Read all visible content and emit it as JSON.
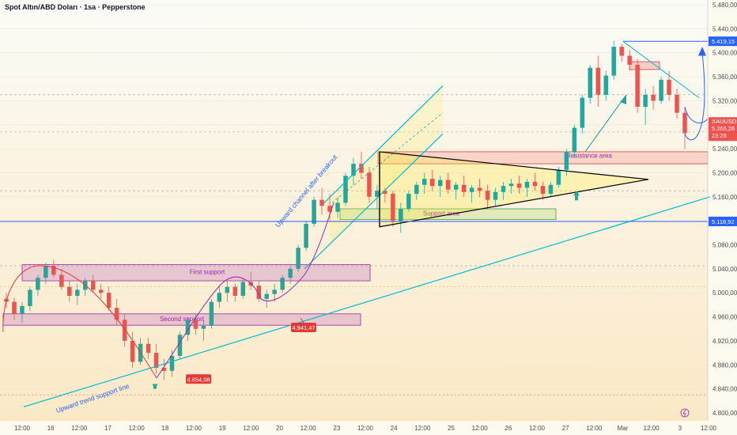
{
  "header": {
    "title": "Spot Altın/ABD Doları · 1sa · Pepperstone"
  },
  "colors": {
    "up": "#26a69a",
    "down": "#ef5350",
    "purple": "#9c27b0",
    "blue": "#2962ff",
    "teal": "#00bcd4",
    "red_zone": "#e53935",
    "green_zone": "#43a047"
  },
  "chart_data": {
    "type": "candlestick",
    "title": "Spot Altın/ABD Doları · 1sa · Pepperstone",
    "symbol": "XAUUSD",
    "ylim": [
      4800,
      5480
    ],
    "y_ticks": [
      4800,
      4840,
      4880,
      4920,
      4960,
      5000,
      5040,
      5080,
      5120,
      5160,
      5200,
      5240,
      5280,
      5320,
      5360,
      5400,
      5440,
      5480
    ],
    "y_tick_labels": [
      "4.800,00",
      "4.840,00",
      "4.880,00",
      "4.920,00",
      "4.960,00",
      "5.000,00",
      "5.040,00",
      "5.080,00",
      "5.120,00",
      "5.160,00",
      "5.200,00",
      "5.240,00",
      "5.280,00",
      "5.320,00",
      "5.360,00",
      "5.400,00",
      "5.440,00",
      "5.480,00"
    ],
    "x_ticks": [
      "12:00",
      "16",
      "12:00",
      "17",
      "12:00",
      "18",
      "12:00",
      "19",
      "12:00",
      "20",
      "12:00",
      "23",
      "12:00",
      "24",
      "12:00",
      "25",
      "12:00",
      "26",
      "12:00",
      "27",
      "12:00",
      "Mar",
      "12:00",
      "3",
      "12:00"
    ],
    "price_tags": [
      {
        "label": "5.419,15",
        "value": 5419.15,
        "color": "#2962ff"
      },
      {
        "label": "XAUUSD",
        "value": 5266.26,
        "color": "#ef5350"
      },
      {
        "label": "5.266,26",
        "value": 5266.26,
        "color": "#ef5350"
      },
      {
        "label": "23:28",
        "value": 5266.26,
        "color": "#ef5350"
      },
      {
        "label": "5.118,92",
        "value": 5118.92,
        "color": "#2962ff"
      }
    ],
    "annotations": {
      "first_support": "First support",
      "second_support": "Second support",
      "support_area": "Support area",
      "resistance_area": "Resistance area",
      "upward_channel": "Upward channel after breakout",
      "upward_trend": "Upward trend support line",
      "low_1": "4.854,08",
      "low_2": "4.941,47"
    },
    "series": [
      {
        "values": [
          [
            4990,
            5000,
            4975,
            4985
          ],
          [
            4985,
            4992,
            4955,
            4965
          ],
          [
            4965,
            4985,
            4950,
            4978
          ],
          [
            4978,
            5010,
            4970,
            5005
          ],
          [
            5005,
            5030,
            4995,
            5025
          ],
          [
            5025,
            5050,
            5015,
            5045
          ],
          [
            5045,
            5055,
            5025,
            5030
          ],
          [
            5030,
            5040,
            5005,
            5010
          ],
          [
            5010,
            5020,
            4985,
            4995
          ],
          [
            4995,
            5015,
            4980,
            5005
          ],
          [
            5005,
            5025,
            4995,
            5020
          ],
          [
            5020,
            5030,
            5000,
            5005
          ],
          [
            5005,
            5015,
            4990,
            5000
          ],
          [
            5000,
            5010,
            4970,
            4975
          ],
          [
            4975,
            4990,
            4945,
            4955
          ],
          [
            4955,
            4965,
            4910,
            4920
          ],
          [
            4920,
            4935,
            4875,
            4885
          ],
          [
            4885,
            4925,
            4880,
            4915
          ],
          [
            4915,
            4925,
            4890,
            4900
          ],
          [
            4900,
            4915,
            4865,
            4875
          ],
          [
            4875,
            4890,
            4855,
            4870
          ],
          [
            4870,
            4905,
            4860,
            4895
          ],
          [
            4895,
            4935,
            4890,
            4930
          ],
          [
            4930,
            4960,
            4920,
            4955
          ],
          [
            4955,
            4965,
            4930,
            4940
          ],
          [
            4940,
            4955,
            4920,
            4945
          ],
          [
            4945,
            4990,
            4940,
            4985
          ],
          [
            4985,
            5010,
            4975,
            5000
          ],
          [
            5000,
            5020,
            4985,
            5010
          ],
          [
            5010,
            5015,
            4985,
            4995
          ],
          [
            4995,
            5025,
            4990,
            5018
          ],
          [
            5018,
            5035,
            5005,
            5012
          ],
          [
            5012,
            5020,
            4985,
            4990
          ],
          [
            4990,
            5005,
            4975,
            4998
          ],
          [
            4998,
            5015,
            4985,
            5005
          ],
          [
            5005,
            5030,
            5000,
            5025
          ],
          [
            5025,
            5045,
            5015,
            5040
          ],
          [
            5040,
            5080,
            5035,
            5075
          ],
          [
            5075,
            5120,
            5070,
            5115
          ],
          [
            5115,
            5160,
            5110,
            5155
          ],
          [
            5155,
            5175,
            5130,
            5145
          ],
          [
            5145,
            5165,
            5120,
            5135
          ],
          [
            5135,
            5160,
            5125,
            5150
          ],
          [
            5150,
            5200,
            5145,
            5195
          ],
          [
            5195,
            5225,
            5180,
            5215
          ],
          [
            5215,
            5235,
            5190,
            5200
          ],
          [
            5200,
            5210,
            5150,
            5160
          ],
          [
            5160,
            5180,
            5140,
            5170
          ],
          [
            5170,
            5175,
            5150,
            5165
          ],
          [
            5165,
            5170,
            5110,
            5120
          ],
          [
            5120,
            5150,
            5100,
            5140
          ],
          [
            5140,
            5170,
            5135,
            5165
          ],
          [
            5165,
            5185,
            5155,
            5180
          ],
          [
            5180,
            5200,
            5165,
            5190
          ],
          [
            5190,
            5205,
            5170,
            5178
          ],
          [
            5178,
            5195,
            5160,
            5188
          ],
          [
            5188,
            5200,
            5165,
            5172
          ],
          [
            5172,
            5185,
            5155,
            5180
          ],
          [
            5180,
            5195,
            5160,
            5168
          ],
          [
            5168,
            5180,
            5150,
            5175
          ],
          [
            5175,
            5190,
            5160,
            5170
          ],
          [
            5170,
            5180,
            5140,
            5155
          ],
          [
            5155,
            5175,
            5145,
            5168
          ],
          [
            5168,
            5185,
            5155,
            5178
          ],
          [
            5178,
            5190,
            5165,
            5182
          ],
          [
            5182,
            5195,
            5165,
            5175
          ],
          [
            5175,
            5190,
            5160,
            5185
          ],
          [
            5185,
            5200,
            5170,
            5178
          ],
          [
            5178,
            5185,
            5155,
            5165
          ],
          [
            5165,
            5185,
            5160,
            5180
          ],
          [
            5180,
            5210,
            5175,
            5205
          ],
          [
            5205,
            5240,
            5195,
            5235
          ],
          [
            5235,
            5280,
            5225,
            5275
          ],
          [
            5275,
            5330,
            5265,
            5325
          ],
          [
            5325,
            5380,
            5315,
            5375
          ],
          [
            5375,
            5395,
            5310,
            5330
          ],
          [
            5330,
            5370,
            5320,
            5362
          ],
          [
            5362,
            5420,
            5355,
            5410
          ],
          [
            5410,
            5415,
            5385,
            5395
          ],
          [
            5395,
            5405,
            5370,
            5380
          ],
          [
            5380,
            5390,
            5300,
            5310
          ],
          [
            5310,
            5340,
            5280,
            5330
          ],
          [
            5330,
            5345,
            5305,
            5320
          ],
          [
            5320,
            5360,
            5315,
            5355
          ],
          [
            5355,
            5370,
            5320,
            5330
          ],
          [
            5330,
            5340,
            5290,
            5300
          ],
          [
            5300,
            5310,
            5240,
            5266
          ]
        ]
      }
    ]
  }
}
